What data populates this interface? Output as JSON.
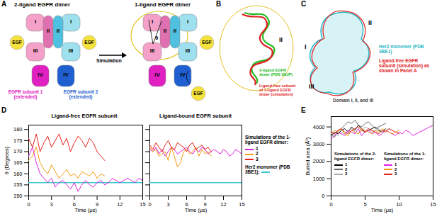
{
  "panel_labels": [
    "A",
    "B",
    "C",
    "D",
    "E"
  ],
  "diagrams": {
    "A": {
      "left": {
        "title": "2-ligand EGFR dimer",
        "subunit1": {
          "domains": [
            "I",
            "II",
            "III",
            "IV"
          ],
          "caption": "EGFR subunit 1 (extended)",
          "color": "#e020c0"
        },
        "subunit2": {
          "domains": [
            "I",
            "II",
            "III",
            "IV"
          ],
          "caption": "EGFR subunit 2 (extended)",
          "color": "#1f5fd0"
        },
        "ligands": [
          "EGF",
          "EGF"
        ]
      },
      "arrow": "Simulation",
      "right": {
        "title": "1-ligand EGFR dimer",
        "subunit1": {
          "domains": [
            "I",
            "II",
            "III",
            "IV"
          ]
        },
        "subunit2": {
          "domains": [
            "I",
            "II",
            "III",
            "IV"
          ]
        },
        "ligands": [
          "EGF"
        ],
        "released": "EGF",
        "angle": "θ"
      }
    },
    "B": {
      "domain": "II",
      "legend": [
        {
          "text": "2-ligand EGFR dimer (PDB 3NJP)",
          "color": "#22bb22"
        },
        {
          "text": "Ligand-free subunit of 1-ligand EGFR dimer (simulation)",
          "color": "#e02020"
        }
      ]
    },
    "C": {
      "domains": [
        "II",
        "I",
        "III"
      ],
      "caption": "Domain I, II, and III",
      "legend": [
        {
          "text": "Her2 monomer (PDB 3BE1)",
          "color": "#2bb8c8"
        },
        {
          "text": "Ligand-free EGFR subunit (simulation) as shown in Panel A",
          "color": "#e02020"
        }
      ]
    }
  },
  "chart_data": [
    {
      "type": "line",
      "title": "Ligand-free EGFR subunit",
      "xlabel": "Time (μs)",
      "ylabel": "θ (Degrees)",
      "xlim": [
        0,
        15
      ],
      "xticks": [
        0,
        3,
        6,
        9,
        12,
        15
      ],
      "ylim": [
        150,
        182
      ],
      "yticks": [
        150,
        155,
        160,
        165,
        170,
        175,
        180
      ],
      "reference": {
        "name": "Her2 monomer (PDB 3BE1):",
        "value": 156,
        "color": "#3cc8d0"
      },
      "series": [
        {
          "name": "1",
          "color": "#e020e0",
          "x": [
            0,
            0.5,
            1,
            1.5,
            2,
            2.5,
            3,
            3.5,
            4,
            4.5,
            5,
            5.5,
            6,
            6.5,
            7,
            7.5,
            8,
            8.5,
            9,
            9.5,
            10,
            10.5,
            11,
            11.5,
            12,
            12.5,
            13,
            13.5,
            14,
            14.5,
            15
          ],
          "values": [
            168,
            172,
            165,
            160,
            158,
            156,
            158,
            154,
            156,
            157,
            155,
            153,
            156,
            152,
            155,
            157,
            155,
            154,
            156,
            157,
            155,
            156,
            158,
            157,
            156,
            157,
            158,
            157,
            156,
            158,
            157
          ]
        },
        {
          "name": "2",
          "color": "#f39c12",
          "x": [
            0,
            0.5,
            1,
            1.5,
            2,
            2.5,
            3,
            3.5,
            4,
            4.5,
            5,
            5.5,
            6,
            6.5,
            7,
            7.5,
            8,
            8.5,
            9,
            9.5,
            10
          ],
          "values": [
            166,
            168,
            172,
            165,
            162,
            160,
            164,
            161,
            158,
            160,
            162,
            159,
            160,
            158,
            161,
            160,
            159,
            161,
            158,
            160,
            159
          ]
        },
        {
          "name": "3",
          "color": "#e8221a",
          "x": [
            0,
            0.5,
            1,
            1.5,
            2,
            2.5,
            3,
            3.5,
            4,
            4.5,
            5,
            5.5,
            6,
            6.5,
            7,
            7.5,
            8,
            8.5,
            9,
            9.5,
            10
          ],
          "values": [
            176,
            172,
            178,
            170,
            174,
            177,
            172,
            175,
            178,
            173,
            176,
            170,
            174,
            177,
            175,
            172,
            176,
            174,
            170,
            168,
            166
          ]
        }
      ]
    },
    {
      "type": "line",
      "title": "Ligand-bound EGFR subunit",
      "xlabel": "Time (μs)",
      "xlim": [
        0,
        15
      ],
      "xticks": [
        0,
        3,
        6,
        9,
        12,
        15
      ],
      "ylim": [
        150,
        182
      ],
      "yticks": [
        150,
        155,
        160,
        165,
        170,
        175,
        180
      ],
      "tick_labels": "x",
      "legend_title": "Simulations of the 1-ligand EGFR dimer:",
      "reference": {
        "name": "Her2 monomer (PDB 3BE1):",
        "value": 156,
        "color": "#3cc8d0"
      },
      "series": [
        {
          "name": "1",
          "color": "#e020e0",
          "x": [
            0,
            0.5,
            1,
            1.5,
            2,
            2.5,
            3,
            3.5,
            4,
            4.5,
            5,
            5.5,
            6,
            6.5,
            7,
            7.5,
            8,
            8.5,
            9,
            9.5,
            10,
            10.5,
            11,
            11.5,
            12,
            12.5,
            13,
            13.5,
            14,
            14.5,
            15
          ],
          "values": [
            171,
            170,
            172,
            169,
            171,
            168,
            170,
            172,
            171,
            169,
            170,
            171,
            172,
            170,
            169,
            171,
            170,
            172,
            171,
            169,
            170,
            171,
            170,
            169,
            171,
            170,
            168,
            169,
            171,
            170,
            169
          ]
        },
        {
          "name": "2",
          "color": "#f39c12",
          "x": [
            0,
            0.5,
            1,
            1.5,
            2,
            2.5,
            3,
            3.5,
            4,
            4.5,
            5,
            5.5,
            6,
            6.5,
            7,
            7.5,
            8,
            8.5,
            9,
            9.5,
            10
          ],
          "values": [
            172,
            170,
            171,
            168,
            169,
            170,
            166,
            172,
            168,
            163,
            165,
            170,
            171,
            169,
            170,
            172,
            168,
            171,
            169,
            170,
            168
          ]
        },
        {
          "name": "3",
          "color": "#e8221a",
          "x": [
            0,
            0.5,
            1,
            1.5,
            2,
            2.5,
            3,
            3.5,
            4,
            4.5,
            5,
            5.5,
            6,
            6.5,
            7,
            7.5,
            8,
            8.5,
            9,
            9.5,
            10
          ],
          "values": [
            173,
            171,
            174,
            172,
            170,
            173,
            175,
            172,
            171,
            174,
            173,
            172,
            170,
            173,
            174,
            171,
            172,
            173,
            171,
            172,
            170
          ]
        }
      ]
    },
    {
      "type": "line",
      "xlabel": "Time (μs)",
      "ylabel": "Buried area (Å²)",
      "xlim": [
        0,
        15
      ],
      "xticks": [
        0,
        5,
        10,
        15
      ],
      "ylim": [
        0,
        4600
      ],
      "yticks": [
        0,
        1000,
        2000,
        3000,
        4000
      ],
      "series_groups": [
        {
          "title": "Simulations of the 2-ligand EGFR dimer:",
          "series": [
            {
              "name": "1",
              "color": "#000000",
              "x": [
                0,
                0.5,
                1,
                1.5,
                2,
                2.5,
                3,
                3.5,
                4,
                4.5,
                5,
                5.5,
                6,
                6.5,
                7,
                7.5,
                8
              ],
              "values": [
                3500,
                3700,
                3600,
                3800,
                3900,
                3700,
                4000,
                3800,
                4100,
                3900,
                3700,
                3800,
                3900,
                4000,
                3800,
                3700,
                3900
              ]
            },
            {
              "name": "2",
              "color": "#666666",
              "x": [
                0,
                0.5,
                1,
                1.5,
                2,
                2.5,
                3,
                3.5,
                4,
                4.5,
                5,
                5.5,
                6,
                6.5,
                7,
                7.5,
                8
              ],
              "values": [
                3600,
                3400,
                3800,
                3900,
                4100,
                4300,
                4200,
                4400,
                4100,
                4000,
                4200,
                4300,
                4100,
                3900,
                4000,
                4100,
                4200
              ]
            },
            {
              "name": "3",
              "color": "#aaaaaa",
              "x": [
                0,
                0.5,
                1,
                1.5,
                2,
                2.5,
                3,
                3.5,
                4,
                4.5,
                5,
                5.5,
                6,
                6.5,
                7,
                7.5,
                8,
                8.5,
                9
              ],
              "values": [
                3400,
                3600,
                3500,
                3700,
                3600,
                3800,
                3900,
                3700,
                3600,
                3800,
                4000,
                3900,
                3700,
                3800,
                3900,
                3700,
                3800,
                3900,
                3800
              ]
            }
          ]
        },
        {
          "title": "Simulations of the 1-ligand EGFR dimer:",
          "series": [
            {
              "name": "1",
              "color": "#e020e0",
              "x": [
                0,
                0.5,
                1,
                1.5,
                2,
                2.5,
                3,
                3.5,
                4,
                4.5,
                5,
                5.5,
                6,
                6.5,
                7,
                7.5,
                8,
                8.5,
                9,
                9.5,
                10,
                10.5,
                11,
                11.5,
                12,
                12.5,
                13,
                13.5,
                14,
                14.5,
                15
              ],
              "values": [
                3300,
                3500,
                3700,
                3600,
                3500,
                3800,
                3700,
                3600,
                3900,
                3500,
                3700,
                3800,
                3600,
                3700,
                3500,
                3600,
                3800,
                3700,
                3600,
                3500,
                3700,
                3600,
                3800,
                3700,
                3500,
                3600,
                3700,
                3800,
                3900,
                4000,
                4100
              ]
            },
            {
              "name": "2",
              "color": "#f39c12",
              "x": [
                0,
                0.5,
                1,
                1.5,
                2,
                2.5,
                3,
                3.5,
                4,
                4.5,
                5,
                5.5,
                6,
                6.5,
                7,
                7.5,
                8,
                8.5,
                9,
                9.5,
                10
              ],
              "values": [
                3600,
                3800,
                3700,
                3900,
                3600,
                3500,
                3800,
                3700,
                3600,
                3900,
                3800,
                3700,
                3600,
                3800,
                3700,
                3900,
                3800,
                3700,
                3600,
                3700,
                3800
              ]
            },
            {
              "name": "3",
              "color": "#e8221a",
              "x": [
                0,
                0.5,
                1,
                1.5,
                2,
                2.5,
                3,
                3.5,
                4,
                4.5,
                5,
                5.5,
                6,
                6.5,
                7,
                7.5,
                8,
                8.5,
                9,
                9.5,
                10
              ],
              "values": [
                3700,
                3600,
                3800,
                3900,
                3700,
                3600,
                3800,
                3900,
                4000,
                3800,
                3700,
                3900,
                3800,
                3700,
                3600,
                3800,
                3700,
                3900,
                3800,
                3700,
                3600
              ]
            }
          ]
        }
      ]
    }
  ]
}
